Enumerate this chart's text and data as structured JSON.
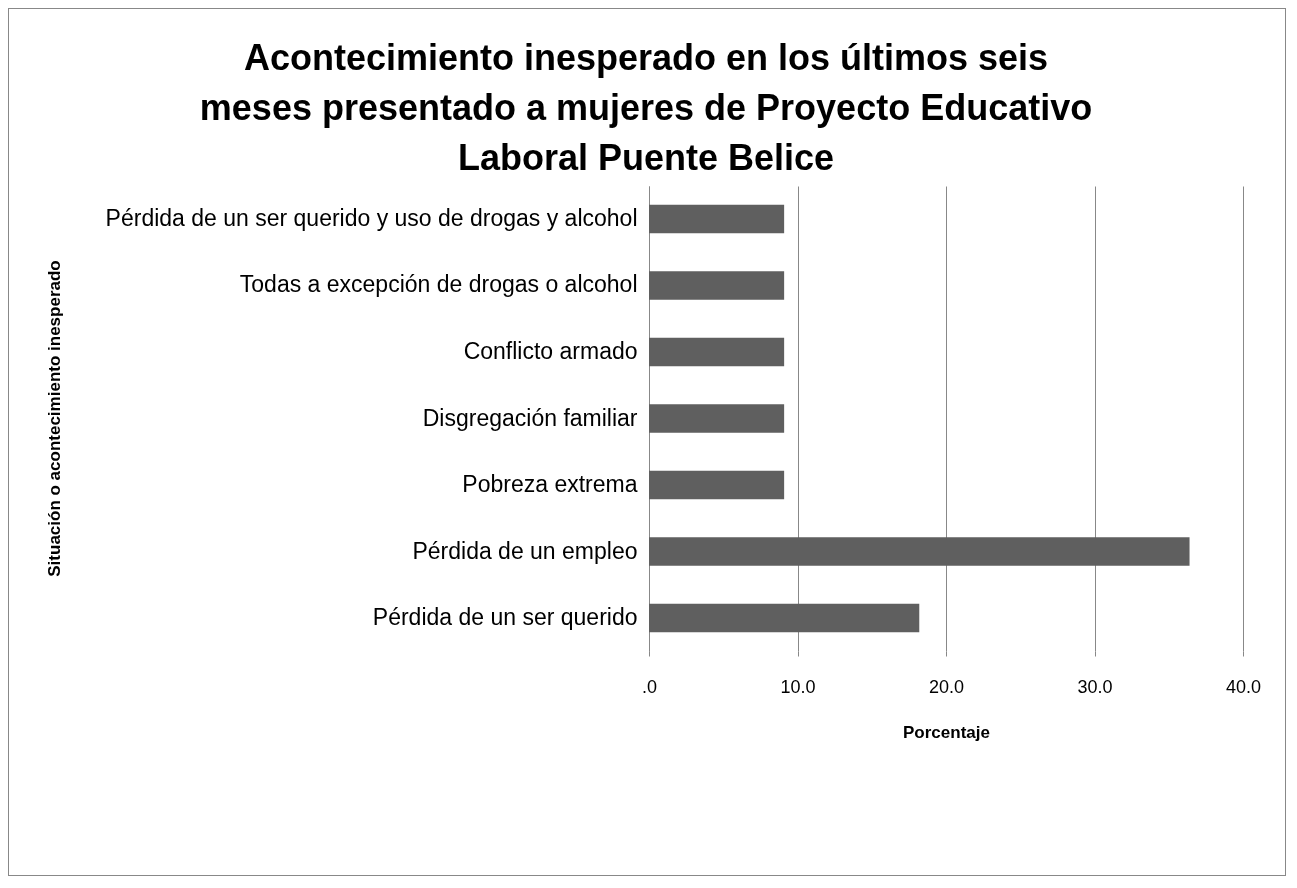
{
  "chart_data": {
    "type": "bar",
    "orientation": "horizontal",
    "title": "Acontecimiento inesperado en los últimos seis meses presentado a mujeres de Proyecto Educativo Laboral Puente Belice",
    "xlabel": "Porcentaje",
    "ylabel": "Situación o acontecimiento inesperado",
    "categories": [
      "Pérdida de un ser querido y uso de drogas y alcohol",
      "Todas a excepción de drogas o alcohol",
      "Conflicto armado",
      "Disgregación familiar",
      "Pobreza extrema",
      "Pérdida de un empleo",
      "Pérdida de un ser querido"
    ],
    "values": [
      9.1,
      9.1,
      9.1,
      9.1,
      9.1,
      36.4,
      18.2
    ],
    "color": "#5f5f5f",
    "xlim": [
      0,
      40
    ],
    "xticks": [
      {
        "value": 0,
        "label": ".0"
      },
      {
        "value": 10,
        "label": "10.0"
      },
      {
        "value": 20,
        "label": "20.0"
      },
      {
        "value": 30,
        "label": "30.0"
      },
      {
        "value": 40,
        "label": "40.0"
      }
    ],
    "grid": "x",
    "legend": false
  }
}
